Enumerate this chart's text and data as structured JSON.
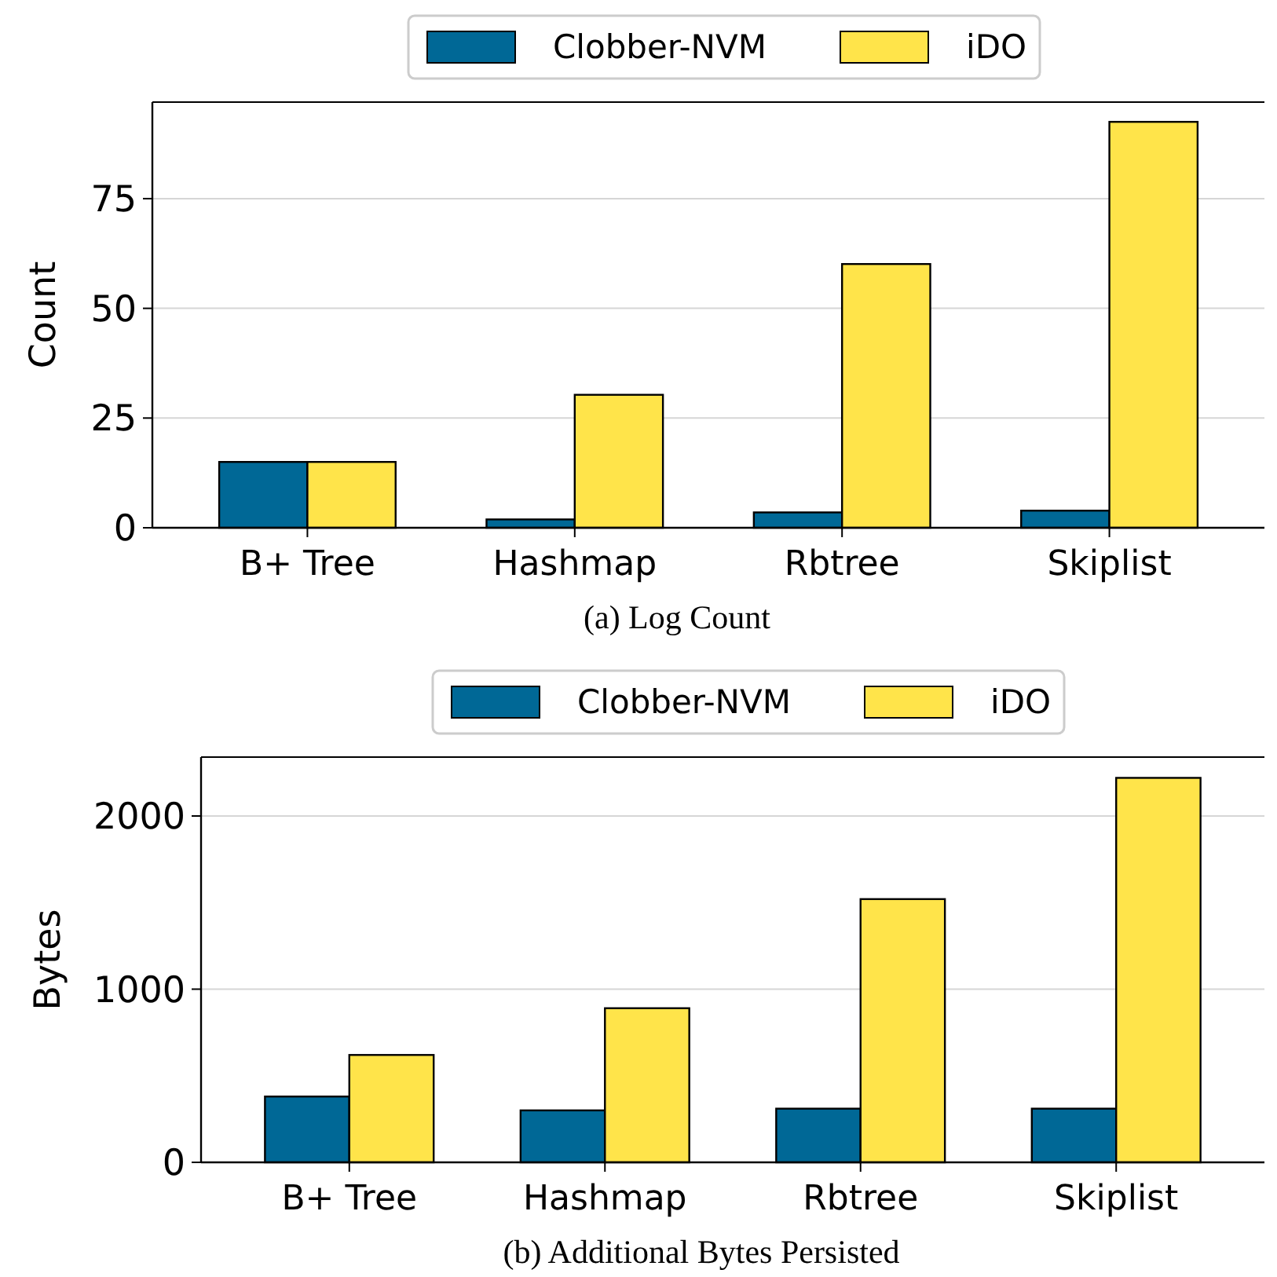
{
  "chart_data": [
    {
      "type": "bar",
      "categories": [
        "B+ Tree",
        "Hashmap",
        "Rbtree",
        "Skiplist"
      ],
      "ylabel": "Count",
      "ylim": [
        0,
        97
      ],
      "yticks": [
        0,
        25,
        50,
        75
      ],
      "grid": "y",
      "legend": "top",
      "annotations": [
        "(a) Log Count"
      ],
      "series": [
        {
          "name": "Clobber-NVM",
          "color": "#006896",
          "values": [
            15,
            1.9,
            3.5,
            3.9
          ]
        },
        {
          "name": "iDO",
          "color": "#ffe44a",
          "values": [
            15,
            30.3,
            60.1,
            92.5
          ]
        }
      ]
    },
    {
      "type": "bar",
      "categories": [
        "B+ Tree",
        "Hashmap",
        "Rbtree",
        "Skiplist"
      ],
      "ylabel": "Bytes",
      "ylim": [
        0,
        2340
      ],
      "yticks": [
        0,
        1000,
        2000
      ],
      "grid": "y",
      "legend": "top",
      "annotations": [
        "(b) Additional Bytes Persisted"
      ],
      "series": [
        {
          "name": "Clobber-NVM",
          "color": "#006896",
          "values": [
            380,
            300,
            310,
            310
          ]
        },
        {
          "name": "iDO",
          "color": "#ffe44a",
          "values": [
            620,
            890,
            1520,
            2220
          ]
        }
      ]
    }
  ]
}
